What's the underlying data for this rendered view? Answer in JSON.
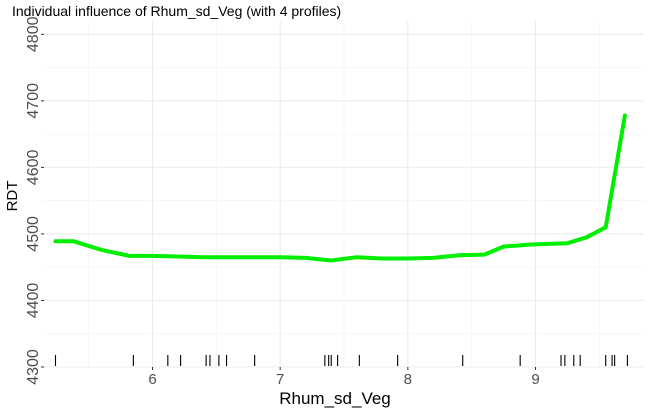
{
  "chart_data": {
    "type": "line",
    "title": "Individual influence of Rhum_sd_Veg (with 4 profiles)",
    "xlabel": "Rhum_sd_Veg",
    "ylabel": "RDT",
    "xlim": [
      5.15,
      9.85
    ],
    "ylim": [
      4300,
      4820
    ],
    "x_ticks": [
      6,
      7,
      8,
      9
    ],
    "x_tick_labels": [
      "6",
      "7",
      "8",
      "9"
    ],
    "y_ticks": [
      4300,
      4400,
      4500,
      4600,
      4700,
      4800
    ],
    "y_tick_labels": [
      "4300",
      "4400",
      "4500",
      "4600",
      "4700",
      "4800"
    ],
    "grid": true,
    "series": [
      {
        "color": "#00ee00",
        "x": [
          5.24,
          5.38,
          5.6,
          5.82,
          6.0,
          6.2,
          6.4,
          6.6,
          6.8,
          7.0,
          7.2,
          7.4,
          7.6,
          7.8,
          8.0,
          8.2,
          8.4,
          8.6,
          8.75,
          8.95,
          9.1,
          9.25,
          9.4,
          9.55,
          9.7
        ],
        "y": [
          4489,
          4489,
          4476,
          4467,
          4467,
          4466,
          4465,
          4465,
          4465,
          4465,
          4464,
          4460,
          4465,
          4463,
          4463,
          4464,
          4468,
          4469,
          4481,
          4484,
          4485,
          4486,
          4495,
          4510,
          4678
        ]
      }
    ],
    "rug_x": [
      5.24,
      5.85,
      6.12,
      6.22,
      6.42,
      6.45,
      6.52,
      6.58,
      6.8,
      7.35,
      7.38,
      7.4,
      7.45,
      7.62,
      7.92,
      8.43,
      8.88,
      9.2,
      9.23,
      9.3,
      9.35,
      9.55,
      9.6,
      9.62,
      9.72
    ]
  }
}
